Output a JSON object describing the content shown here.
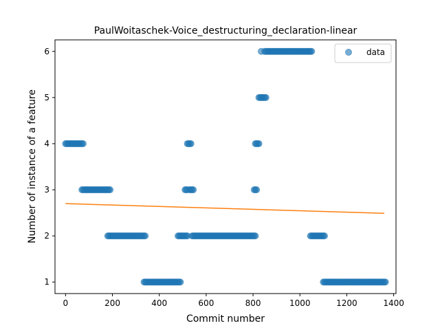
{
  "chart_data": {
    "type": "scatter",
    "title": "PaulWoitaschek-Voice_destructuring_declaration-linear",
    "xlabel": "Commit number",
    "ylabel": "Number of instance of a feature",
    "xlim": [
      -45,
      1410
    ],
    "ylim": [
      0.75,
      6.25
    ],
    "xticks": [
      0,
      200,
      400,
      600,
      800,
      1000,
      1200,
      1400
    ],
    "yticks": [
      1,
      2,
      3,
      4,
      5,
      6
    ],
    "grid": false,
    "legend": {
      "position": "top-right",
      "entries": [
        "data"
      ]
    },
    "colors": {
      "points": "#1f77b4",
      "fit": "#ff7f0e"
    },
    "series": [
      {
        "name": "data",
        "kind": "points",
        "runs": [
          {
            "x_start": 0,
            "x_end": 75,
            "y": 4
          },
          {
            "x_start": 70,
            "x_end": 190,
            "y": 3
          },
          {
            "x_start": 180,
            "x_end": 340,
            "y": 2
          },
          {
            "x_start": 335,
            "x_end": 490,
            "y": 1
          },
          {
            "x_start": 480,
            "x_end": 520,
            "y": 2
          },
          {
            "x_start": 510,
            "x_end": 520,
            "y": 3
          },
          {
            "x_start": 520,
            "x_end": 535,
            "y": 4
          },
          {
            "x_start": 530,
            "x_end": 545,
            "y": 3
          },
          {
            "x_start": 540,
            "x_end": 810,
            "y": 2
          },
          {
            "x_start": 805,
            "x_end": 815,
            "y": 3
          },
          {
            "x_start": 810,
            "x_end": 825,
            "y": 4
          },
          {
            "x_start": 825,
            "x_end": 855,
            "y": 5
          },
          {
            "x_start": 835,
            "x_end": 835,
            "y": 6
          },
          {
            "x_start": 850,
            "x_end": 1050,
            "y": 6
          },
          {
            "x_start": 1045,
            "x_end": 1105,
            "y": 2
          },
          {
            "x_start": 1100,
            "x_end": 1365,
            "y": 1
          }
        ]
      },
      {
        "name": "",
        "kind": "line",
        "x": [
          0,
          1360
        ],
        "y": [
          2.7,
          2.49
        ]
      }
    ]
  }
}
